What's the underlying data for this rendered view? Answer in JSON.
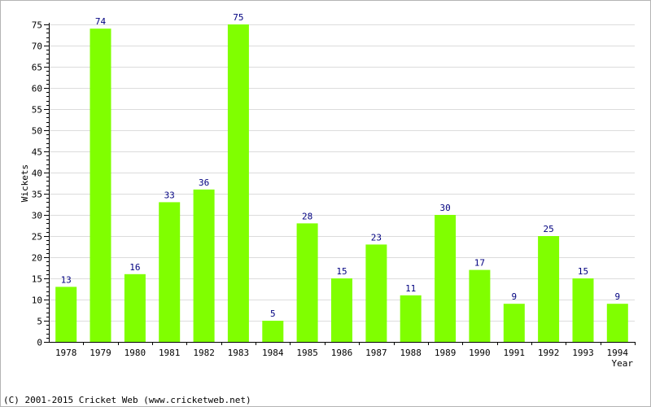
{
  "chart_data": {
    "type": "bar",
    "categories": [
      "1978",
      "1979",
      "1980",
      "1981",
      "1982",
      "1983",
      "1984",
      "1985",
      "1986",
      "1987",
      "1988",
      "1989",
      "1990",
      "1991",
      "1992",
      "1993",
      "1994"
    ],
    "values": [
      13,
      74,
      16,
      33,
      36,
      75,
      5,
      28,
      15,
      23,
      11,
      30,
      17,
      9,
      25,
      15,
      9
    ],
    "title": "",
    "xlabel": "Year",
    "ylabel": "Wickets",
    "ylim": [
      0,
      75
    ],
    "ytick_step": 5,
    "grid": true,
    "bar_color": "#80ff00",
    "label_color": "#000080"
  },
  "footer": {
    "copyright": "(C) 2001-2015 Cricket Web (www.cricketweb.net)"
  }
}
